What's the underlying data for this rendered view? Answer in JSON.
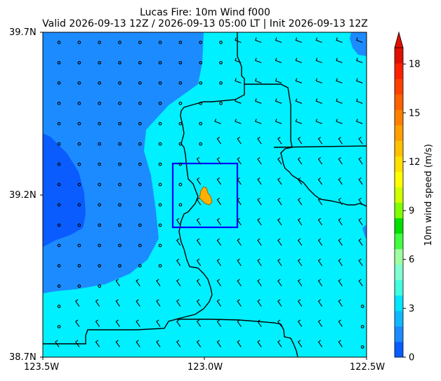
{
  "title": {
    "line1": "Lucas Fire: 10m Wind f000",
    "line2": "Valid 2026-09-13 12Z / 2026-09-13 05:00 LT | Init 2026-09-13 12Z"
  },
  "axes": {
    "x_ticks": [
      {
        "value": -123.5,
        "label": "123.5W"
      },
      {
        "value": -123.0,
        "label": "123.0W"
      },
      {
        "value": -122.5,
        "label": "122.5W"
      }
    ],
    "y_ticks": [
      {
        "value": 39.7,
        "label": "39.7N"
      },
      {
        "value": 39.2,
        "label": "39.2N"
      },
      {
        "value": 38.7,
        "label": "38.7N"
      }
    ],
    "xlim": [
      -123.5,
      -122.5
    ],
    "ylim": [
      38.7,
      39.7
    ]
  },
  "colorbar": {
    "label": "10m wind speed (m/s)",
    "ticks": [
      0,
      3,
      6,
      9,
      12,
      15,
      18
    ],
    "range": [
      0,
      19
    ],
    "extend": "max",
    "colors": [
      "#0a5cff",
      "#1c8bff",
      "#10b8ff",
      "#00e6ff",
      "#40ffe0",
      "#80ffd0",
      "#a0ffa0",
      "#40ff40",
      "#00e000",
      "#80ff00",
      "#d0ff00",
      "#ffff00",
      "#ffe000",
      "#ffc000",
      "#ffa000",
      "#ff8000",
      "#ff6000",
      "#ff4000",
      "#ff2000",
      "#e01000"
    ]
  },
  "wind_field": {
    "colors": {
      "calm_dark": "#0a5cff",
      "light": "#1c8bff",
      "moderate": "#00f0ff",
      "border": "#000000",
      "box": "#0000ff",
      "fire": "#ffb000"
    },
    "regions": [
      {
        "name": "west-calm-core",
        "speed_ms": 0.5
      },
      {
        "name": "west-light",
        "speed_ms": 2
      },
      {
        "name": "east-moderate",
        "speed_ms": 4
      }
    ]
  },
  "fire_box": {
    "lon_min": -123.1,
    "lon_max": -122.9,
    "lat_min": 39.1,
    "lat_max": 39.3
  },
  "fire_location": {
    "lon": -123.0,
    "lat": 39.2
  }
}
